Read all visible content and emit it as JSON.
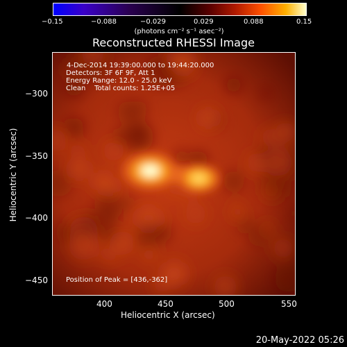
{
  "colorbar": {
    "ticks": [
      "−0.15",
      "−0.088",
      "−0.029",
      "0.029",
      "0.088",
      "0.15"
    ],
    "unit_label": "(photons cm⁻² s⁻¹ asec⁻²)"
  },
  "chart_data": {
    "type": "heatmap",
    "title": "Reconstructed RHESSI Image",
    "xlabel": "Heliocentric X (arcsec)",
    "ylabel": "Heliocentric Y (arcsec)",
    "xlim": [
      360,
      550
    ],
    "ylim": [
      -460,
      -270
    ],
    "xticks": [
      "400",
      "450",
      "500",
      "550"
    ],
    "yticks": [
      "−300",
      "−350",
      "−400",
      "−450"
    ],
    "color_range": [
      -0.15,
      0.15
    ],
    "sources": [
      {
        "x": 436,
        "y": -362,
        "peak": 0.15
      },
      {
        "x": 474,
        "y": -368,
        "peak": 0.11
      }
    ],
    "annotations": {
      "time": "4-Dec-2014 19:39:00.000 to 19:44:20.000",
      "detectors": "Detectors: 3F 6F 9F, Att 1",
      "energy": "Energy Range: 12.0 - 25.0 keV",
      "clean": "Clean    Total counts: 1.25E+05",
      "peak": "Position of Peak = [436,-362]"
    }
  },
  "footer": {
    "timestamp": "20-May-2022 05:26"
  }
}
